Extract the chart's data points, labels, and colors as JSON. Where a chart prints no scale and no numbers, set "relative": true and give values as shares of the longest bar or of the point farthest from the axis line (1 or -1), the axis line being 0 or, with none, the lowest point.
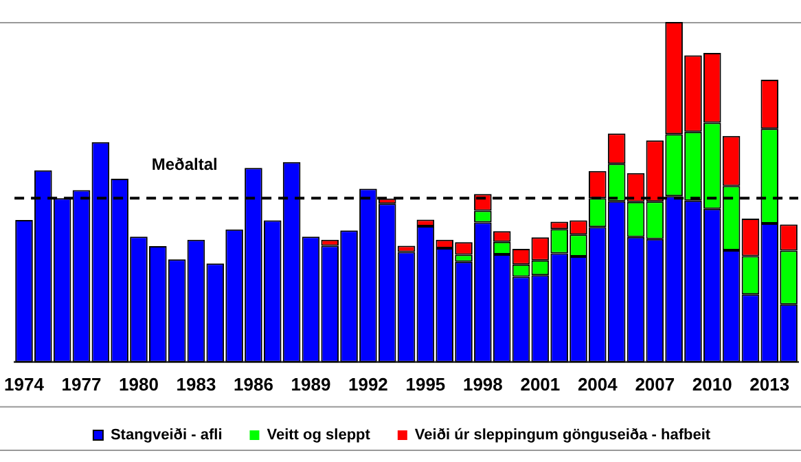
{
  "chart_data": {
    "type": "bar",
    "stacked": true,
    "relative": true,
    "legend": "bottom",
    "grid": false,
    "categories": [
      "1974",
      null,
      null,
      "1977",
      null,
      null,
      "1980",
      null,
      null,
      "1983",
      null,
      null,
      "1986",
      null,
      null,
      "1989",
      null,
      null,
      "1992",
      null,
      null,
      "1995",
      null,
      null,
      "1998",
      null,
      null,
      "2001",
      null,
      null,
      "2004",
      null,
      null,
      "2007",
      null,
      null,
      "2010",
      null,
      null,
      "2013",
      null
    ],
    "series": [
      {
        "name": "Stangveiði - afli",
        "color": "#0000ff",
        "values": [
          0.418,
          0.564,
          0.482,
          0.506,
          0.647,
          0.539,
          0.369,
          0.341,
          0.302,
          0.36,
          0.29,
          0.39,
          0.571,
          0.417,
          0.588,
          0.369,
          0.342,
          0.387,
          0.51,
          0.466,
          0.324,
          0.4,
          0.335,
          0.295,
          0.411,
          0.317,
          0.251,
          0.256,
          0.32,
          0.311,
          0.397,
          0.473,
          0.368,
          0.362,
          0.488,
          0.475,
          0.451,
          0.329,
          0.199,
          0.408,
          0.17
        ]
      },
      {
        "name": "Veitt og sleppt",
        "color": "#00ff00",
        "values": [
          0,
          0,
          0,
          0,
          0,
          0,
          0,
          0,
          0,
          0,
          0,
          0,
          0,
          0,
          0,
          0,
          0,
          0,
          0,
          0,
          0,
          0,
          0,
          0.021,
          0.034,
          0.037,
          0.036,
          0.043,
          0.071,
          0.064,
          0.085,
          0.11,
          0.103,
          0.11,
          0.182,
          0.202,
          0.253,
          0.189,
          0.113,
          0.278,
          0.158
        ]
      },
      {
        "name": "Veiði úr sleppingum gönguseiða - hafbeit",
        "color": "#ff0000",
        "values": [
          0,
          0,
          0,
          0,
          0,
          0,
          0,
          0,
          0,
          0,
          0,
          0,
          0,
          0,
          0,
          0,
          0.018,
          0,
          0,
          0.015,
          0.018,
          0.019,
          0.025,
          0.037,
          0.049,
          0.031,
          0.046,
          0.068,
          0.022,
          0.042,
          0.08,
          0.089,
          0.085,
          0.18,
          0.33,
          0.225,
          0.205,
          0.147,
          0.11,
          0.144,
          0.077
        ]
      }
    ],
    "ref_lines": [
      {
        "axis": "y",
        "value": 0.482,
        "label": "Meðaltal",
        "color": "#000000",
        "line_style": "dashed"
      }
    ]
  }
}
